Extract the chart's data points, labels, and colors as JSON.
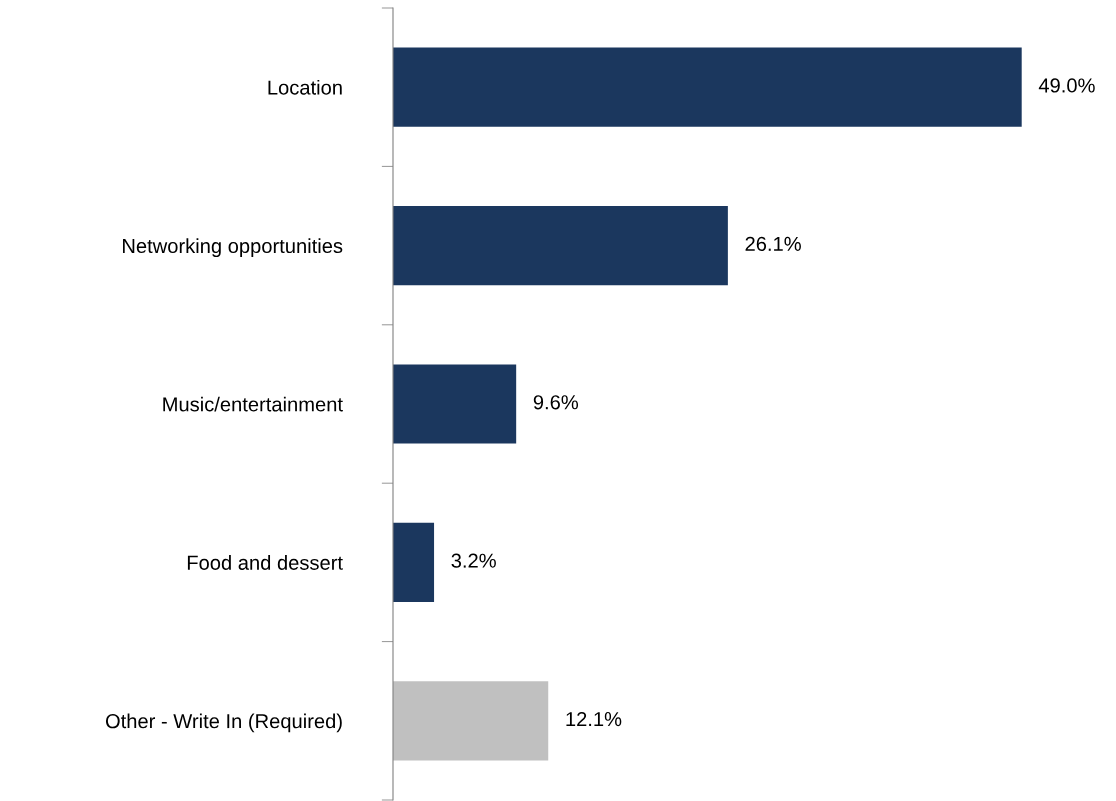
{
  "chart_data": {
    "type": "bar",
    "orientation": "horizontal",
    "categories": [
      "Location",
      "Networking opportunities",
      "Music/entertainment",
      "Food and dessert",
      "Other - Write In (Required)"
    ],
    "values": [
      49.0,
      26.1,
      9.6,
      3.2,
      12.1
    ],
    "colors": [
      "#1b375e",
      "#1b375e",
      "#1b375e",
      "#1b375e",
      "#c0c0c0"
    ],
    "value_labels": [
      "49.0%",
      "26.1%",
      "9.6%",
      "3.2%",
      "12.1%"
    ],
    "grid": false,
    "legend": false
  }
}
